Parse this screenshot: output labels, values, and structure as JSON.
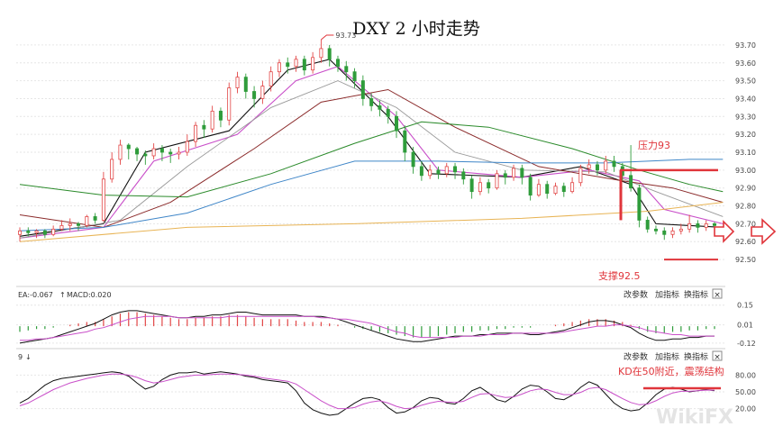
{
  "chart_data": {
    "type": "candlestick",
    "title": "DXY 2 小时走势",
    "ylim": [
      92.45,
      93.75
    ],
    "ticks": [
      "93.70",
      "93.60",
      "93.50",
      "93.40",
      "93.30",
      "93.20",
      "93.10",
      "93.00",
      "92.90",
      "92.80",
      "92.70",
      "92.60",
      "92.50"
    ],
    "high_label": "93.73",
    "candles": [
      [
        92.64,
        92.66,
        92.6,
        92.68
      ],
      [
        92.66,
        92.65,
        92.63,
        92.68
      ],
      [
        92.65,
        92.66,
        92.62,
        92.67
      ],
      [
        92.66,
        92.64,
        92.62,
        92.67
      ],
      [
        92.64,
        92.67,
        92.63,
        92.69
      ],
      [
        92.67,
        92.69,
        92.66,
        92.72
      ],
      [
        92.69,
        92.7,
        92.66,
        92.73
      ],
      [
        92.7,
        92.69,
        92.66,
        92.71
      ],
      [
        92.69,
        92.74,
        92.68,
        92.75
      ],
      [
        92.74,
        92.72,
        92.7,
        92.76
      ],
      [
        92.72,
        92.95,
        92.71,
        92.99
      ],
      [
        92.95,
        93.06,
        92.93,
        93.1
      ],
      [
        93.06,
        93.14,
        93.03,
        93.17
      ],
      [
        93.14,
        93.12,
        93.06,
        93.15
      ],
      [
        93.12,
        93.09,
        93.05,
        93.13
      ],
      [
        93.09,
        93.08,
        93.03,
        93.11
      ],
      [
        93.08,
        93.12,
        93.06,
        93.15
      ],
      [
        93.12,
        93.1,
        93.05,
        93.14
      ],
      [
        93.1,
        93.09,
        93.04,
        93.12
      ],
      [
        93.09,
        93.1,
        93.06,
        93.13
      ],
      [
        93.1,
        93.16,
        93.08,
        93.2
      ],
      [
        93.16,
        93.25,
        93.13,
        93.27
      ],
      [
        93.25,
        93.23,
        93.18,
        93.28
      ],
      [
        93.23,
        93.33,
        93.21,
        93.36
      ],
      [
        93.33,
        93.28,
        93.24,
        93.35
      ],
      [
        93.28,
        93.46,
        93.25,
        93.49
      ],
      [
        93.46,
        93.52,
        93.43,
        93.55
      ],
      [
        93.52,
        93.44,
        93.4,
        93.54
      ],
      [
        93.44,
        93.4,
        93.35,
        93.47
      ],
      [
        93.4,
        93.47,
        93.37,
        93.5
      ],
      [
        93.47,
        93.55,
        93.44,
        93.58
      ],
      [
        93.55,
        93.6,
        93.52,
        93.62
      ],
      [
        93.6,
        93.58,
        93.54,
        93.63
      ],
      [
        93.58,
        93.62,
        93.55,
        93.64
      ],
      [
        93.62,
        93.56,
        93.53,
        93.64
      ],
      [
        93.56,
        93.63,
        93.54,
        93.66
      ],
      [
        93.63,
        93.68,
        93.6,
        93.73
      ],
      [
        93.68,
        93.62,
        93.58,
        93.7
      ],
      [
        93.62,
        93.58,
        93.55,
        93.64
      ],
      [
        93.58,
        93.55,
        93.5,
        93.61
      ],
      [
        93.55,
        93.5,
        93.46,
        93.57
      ],
      [
        93.5,
        93.4,
        93.36,
        93.53
      ],
      [
        93.4,
        93.36,
        93.33,
        93.43
      ],
      [
        93.36,
        93.34,
        93.3,
        93.39
      ],
      [
        93.34,
        93.3,
        93.26,
        93.36
      ],
      [
        93.3,
        93.22,
        93.18,
        93.33
      ],
      [
        93.22,
        93.1,
        93.05,
        93.25
      ],
      [
        93.1,
        93.02,
        92.98,
        93.13
      ],
      [
        93.02,
        92.97,
        92.94,
        93.05
      ],
      [
        92.97,
        93.0,
        92.95,
        93.03
      ],
      [
        93.0,
        92.98,
        92.95,
        93.02
      ],
      [
        92.98,
        93.02,
        92.96,
        93.04
      ],
      [
        93.02,
        92.99,
        92.95,
        93.04
      ],
      [
        92.99,
        92.95,
        92.92,
        93.01
      ],
      [
        92.95,
        92.88,
        92.84,
        92.97
      ],
      [
        92.88,
        92.93,
        92.86,
        92.96
      ],
      [
        92.93,
        92.9,
        92.87,
        92.95
      ],
      [
        92.9,
        92.98,
        92.89,
        93.0
      ],
      [
        92.98,
        92.96,
        92.92,
        93.0
      ],
      [
        92.96,
        93.01,
        92.94,
        93.03
      ],
      [
        93.01,
        92.96,
        92.92,
        93.03
      ],
      [
        92.96,
        92.86,
        92.83,
        92.98
      ],
      [
        92.86,
        92.92,
        92.85,
        92.95
      ],
      [
        92.92,
        92.87,
        92.84,
        92.94
      ],
      [
        92.87,
        92.91,
        92.86,
        92.93
      ],
      [
        92.91,
        92.88,
        92.85,
        92.93
      ],
      [
        92.88,
        92.93,
        92.87,
        92.96
      ],
      [
        92.93,
        93.01,
        92.91,
        93.03
      ],
      [
        93.01,
        93.03,
        92.98,
        93.06
      ],
      [
        93.03,
        93.0,
        92.97,
        93.05
      ],
      [
        93.0,
        93.05,
        92.98,
        93.08
      ],
      [
        93.05,
        93.02,
        92.99,
        93.08
      ],
      [
        93.02,
        92.97,
        92.94,
        93.04
      ],
      [
        92.97,
        92.9,
        92.88,
        93.14
      ],
      [
        92.9,
        92.72,
        92.68,
        92.92
      ],
      [
        92.72,
        92.67,
        92.65,
        92.74
      ],
      [
        92.67,
        92.66,
        92.64,
        92.69
      ],
      [
        92.66,
        92.64,
        92.61,
        92.68
      ],
      [
        92.64,
        92.66,
        92.62,
        92.68
      ],
      [
        92.66,
        92.67,
        92.64,
        92.7
      ],
      [
        92.67,
        92.7,
        92.65,
        92.75
      ],
      [
        92.7,
        92.68,
        92.65,
        92.72
      ],
      [
        92.68,
        92.7,
        92.66,
        92.72
      ],
      [
        92.7,
        92.69,
        92.67,
        92.71
      ]
    ],
    "series": [
      {
        "color": "#111111",
        "width": 1.1,
        "points": [
          [
            0,
            92.63
          ],
          [
            10,
            92.7
          ],
          [
            15,
            93.1
          ],
          [
            25,
            93.22
          ],
          [
            32,
            93.56
          ],
          [
            37,
            93.62
          ],
          [
            44,
            93.3
          ],
          [
            49,
            92.98
          ],
          [
            60,
            92.96
          ],
          [
            67,
            93.02
          ],
          [
            73,
            92.92
          ],
          [
            76,
            92.7
          ],
          [
            84,
            92.68
          ]
        ]
      },
      {
        "color": "#c94fc9",
        "width": 1.1,
        "points": [
          [
            0,
            92.62
          ],
          [
            10,
            92.68
          ],
          [
            16,
            93.05
          ],
          [
            26,
            93.2
          ],
          [
            33,
            93.5
          ],
          [
            38,
            93.58
          ],
          [
            45,
            93.3
          ],
          [
            50,
            93.0
          ],
          [
            60,
            92.96
          ],
          [
            68,
            93.0
          ],
          [
            74,
            92.94
          ],
          [
            77,
            92.78
          ],
          [
            84,
            92.7
          ]
        ]
      },
      {
        "color": "#999999",
        "width": 0.9,
        "points": [
          [
            0,
            92.62
          ],
          [
            12,
            92.72
          ],
          [
            20,
            93.02
          ],
          [
            30,
            93.35
          ],
          [
            38,
            93.5
          ],
          [
            45,
            93.35
          ],
          [
            52,
            93.1
          ],
          [
            60,
            93.0
          ],
          [
            70,
            92.99
          ],
          [
            76,
            92.88
          ],
          [
            84,
            92.74
          ]
        ]
      },
      {
        "color": "#8b2b2b",
        "width": 1.0,
        "points": [
          [
            0,
            92.75
          ],
          [
            10,
            92.68
          ],
          [
            18,
            92.82
          ],
          [
            28,
            93.12
          ],
          [
            36,
            93.38
          ],
          [
            44,
            93.45
          ],
          [
            52,
            93.24
          ],
          [
            62,
            93.02
          ],
          [
            72,
            92.94
          ],
          [
            78,
            92.9
          ],
          [
            84,
            92.82
          ]
        ]
      },
      {
        "color": "#2a8a2a",
        "width": 1.0,
        "points": [
          [
            0,
            92.92
          ],
          [
            10,
            92.86
          ],
          [
            20,
            92.85
          ],
          [
            30,
            92.98
          ],
          [
            40,
            93.15
          ],
          [
            48,
            93.27
          ],
          [
            56,
            93.24
          ],
          [
            66,
            93.12
          ],
          [
            74,
            93.0
          ],
          [
            80,
            92.92
          ],
          [
            84,
            92.88
          ]
        ]
      },
      {
        "color": "#3f86c8",
        "width": 1.0,
        "points": [
          [
            0,
            92.66
          ],
          [
            10,
            92.68
          ],
          [
            20,
            92.76
          ],
          [
            30,
            92.92
          ],
          [
            40,
            93.05
          ],
          [
            50,
            93.05
          ],
          [
            60,
            93.04
          ],
          [
            70,
            93.04
          ],
          [
            80,
            93.06
          ],
          [
            84,
            93.06
          ]
        ]
      },
      {
        "color": "#e8b455",
        "width": 1.0,
        "points": [
          [
            0,
            92.6
          ],
          [
            20,
            92.68
          ],
          [
            40,
            92.7
          ],
          [
            60,
            92.73
          ],
          [
            75,
            92.77
          ],
          [
            84,
            92.82
          ]
        ]
      }
    ],
    "annotations": {
      "resistance_label": "压力93",
      "resistance_value": 93.0,
      "support_label": "支撑92.5",
      "support_value": 92.5
    },
    "macd": {
      "header": "EA:-0.067",
      "arrow": "↑",
      "macd_label": "MACD:0.020",
      "ticks": [
        "0.15",
        "0.01",
        "-0.12"
      ],
      "ylim": [
        -0.14,
        0.18
      ],
      "hist": [
        -0.04,
        -0.03,
        -0.02,
        -0.02,
        -0.01,
        0,
        0.01,
        0.02,
        0.03,
        0.03,
        0.05,
        0.07,
        0.09,
        0.1,
        0.1,
        0.09,
        0.08,
        0.07,
        0.06,
        0.05,
        0.05,
        0.06,
        0.06,
        0.07,
        0.07,
        0.08,
        0.08,
        0.07,
        0.06,
        0.05,
        0.05,
        0.05,
        0.05,
        0.04,
        0.03,
        0.03,
        0.03,
        0.02,
        0.01,
        0,
        -0.01,
        -0.02,
        -0.03,
        -0.04,
        -0.05,
        -0.06,
        -0.07,
        -0.08,
        -0.08,
        -0.08,
        -0.07,
        -0.06,
        -0.05,
        -0.04,
        -0.04,
        -0.03,
        -0.03,
        -0.02,
        -0.02,
        -0.01,
        -0.01,
        -0.01,
        0,
        0,
        0.01,
        0.02,
        0.03,
        0.04,
        0.05,
        0.05,
        0.05,
        0.04,
        0.03,
        0.01,
        -0.02,
        -0.04,
        -0.05,
        -0.05,
        -0.04,
        -0.04,
        -0.03,
        -0.03,
        -0.02,
        -0.02
      ],
      "dif": [
        -0.12,
        -0.11,
        -0.1,
        -0.09,
        -0.08,
        -0.06,
        -0.04,
        -0.02,
        0.0,
        0.02,
        0.05,
        0.08,
        0.1,
        0.11,
        0.11,
        0.1,
        0.09,
        0.08,
        0.07,
        0.06,
        0.06,
        0.07,
        0.07,
        0.08,
        0.08,
        0.09,
        0.1,
        0.1,
        0.09,
        0.08,
        0.08,
        0.08,
        0.08,
        0.08,
        0.07,
        0.07,
        0.07,
        0.06,
        0.05,
        0.03,
        0.01,
        -0.01,
        -0.03,
        -0.05,
        -0.07,
        -0.09,
        -0.1,
        -0.11,
        -0.11,
        -0.1,
        -0.09,
        -0.08,
        -0.07,
        -0.07,
        -0.07,
        -0.06,
        -0.06,
        -0.05,
        -0.05,
        -0.05,
        -0.05,
        -0.06,
        -0.06,
        -0.05,
        -0.04,
        -0.03,
        -0.01,
        0.01,
        0.03,
        0.04,
        0.04,
        0.03,
        0.01,
        -0.01,
        -0.05,
        -0.08,
        -0.1,
        -0.1,
        -0.09,
        -0.09,
        -0.08,
        -0.08,
        -0.07,
        -0.07
      ],
      "dea": [
        -0.1,
        -0.1,
        -0.09,
        -0.09,
        -0.08,
        -0.07,
        -0.06,
        -0.05,
        -0.04,
        -0.02,
        -0.01,
        0.01,
        0.03,
        0.05,
        0.06,
        0.07,
        0.07,
        0.07,
        0.07,
        0.06,
        0.06,
        0.06,
        0.06,
        0.06,
        0.06,
        0.07,
        0.07,
        0.07,
        0.07,
        0.07,
        0.07,
        0.07,
        0.07,
        0.07,
        0.07,
        0.07,
        0.06,
        0.06,
        0.05,
        0.05,
        0.04,
        0.03,
        0.02,
        0.0,
        -0.02,
        -0.04,
        -0.05,
        -0.07,
        -0.08,
        -0.08,
        -0.08,
        -0.08,
        -0.08,
        -0.07,
        -0.07,
        -0.07,
        -0.06,
        -0.06,
        -0.06,
        -0.05,
        -0.05,
        -0.05,
        -0.05,
        -0.05,
        -0.05,
        -0.04,
        -0.03,
        -0.02,
        -0.01,
        0.0,
        0.0,
        0.01,
        0.01,
        0.0,
        -0.01,
        -0.03,
        -0.04,
        -0.05,
        -0.06,
        -0.06,
        -0.07,
        -0.07,
        -0.07,
        -0.07
      ]
    },
    "kd": {
      "header": "9",
      "arrow": "↓",
      "ticks": [
        "80.00",
        "50.00",
        "20.00"
      ],
      "ylim": [
        0,
        100
      ],
      "k": [
        30,
        38,
        50,
        62,
        70,
        74,
        76,
        78,
        80,
        82,
        84,
        86,
        84,
        78,
        66,
        55,
        60,
        72,
        80,
        84,
        84,
        86,
        82,
        84,
        86,
        84,
        82,
        78,
        76,
        72,
        70,
        68,
        66,
        52,
        30,
        18,
        12,
        8,
        10,
        20,
        30,
        38,
        40,
        36,
        22,
        12,
        14,
        22,
        34,
        40,
        38,
        30,
        28,
        38,
        52,
        58,
        48,
        36,
        32,
        42,
        55,
        62,
        60,
        50,
        38,
        36,
        44,
        58,
        68,
        62,
        46,
        30,
        20,
        16,
        18,
        30,
        45,
        55,
        58,
        55,
        50,
        52,
        54,
        52
      ],
      "d": [
        25,
        30,
        38,
        46,
        54,
        60,
        66,
        70,
        74,
        77,
        80,
        82,
        82,
        80,
        76,
        70,
        66,
        68,
        72,
        76,
        78,
        80,
        80,
        81,
        82,
        82,
        81,
        80,
        78,
        75,
        73,
        71,
        69,
        64,
        54,
        44,
        34,
        26,
        20,
        20,
        22,
        28,
        32,
        34,
        30,
        24,
        20,
        21,
        26,
        30,
        33,
        32,
        31,
        33,
        40,
        46,
        47,
        43,
        40,
        41,
        46,
        52,
        55,
        54,
        49,
        45,
        45,
        49,
        56,
        58,
        54,
        46,
        38,
        31,
        27,
        28,
        34,
        42,
        48,
        51,
        51,
        52,
        53,
        53
      ]
    },
    "buttons": [
      "改参数",
      "加指标",
      "换指标"
    ],
    "close_symbol": "×",
    "kd_annotation": "KD在50附近，震荡结构",
    "watermark": "WikiFX"
  },
  "colors": {
    "up": "#e24646",
    "down": "#2f9c3b",
    "annotation": "#e0353b",
    "grid": "#e6e6e6",
    "magenta": "#c94fc9"
  }
}
